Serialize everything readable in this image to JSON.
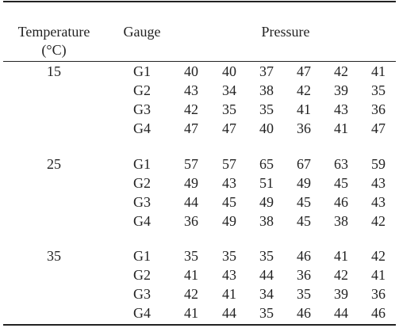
{
  "table": {
    "header": {
      "temperature": "Temperature",
      "unit": "(°C)",
      "gauge": "Gauge",
      "pressure": "Pressure"
    },
    "groups": [
      {
        "temperature": "15",
        "rows": [
          {
            "gauge": "G1",
            "pressure": [
              40,
              40,
              37,
              47,
              42,
              41
            ]
          },
          {
            "gauge": "G2",
            "pressure": [
              43,
              34,
              38,
              42,
              39,
              35
            ]
          },
          {
            "gauge": "G3",
            "pressure": [
              42,
              35,
              35,
              41,
              43,
              36
            ]
          },
          {
            "gauge": "G4",
            "pressure": [
              47,
              47,
              40,
              36,
              41,
              47
            ]
          }
        ]
      },
      {
        "temperature": "25",
        "rows": [
          {
            "gauge": "G1",
            "pressure": [
              57,
              57,
              65,
              67,
              63,
              59
            ]
          },
          {
            "gauge": "G2",
            "pressure": [
              49,
              43,
              51,
              49,
              45,
              43
            ]
          },
          {
            "gauge": "G3",
            "pressure": [
              44,
              45,
              49,
              45,
              46,
              43
            ]
          },
          {
            "gauge": "G4",
            "pressure": [
              36,
              49,
              38,
              45,
              38,
              42
            ]
          }
        ]
      },
      {
        "temperature": "35",
        "rows": [
          {
            "gauge": "G1",
            "pressure": [
              35,
              35,
              35,
              46,
              41,
              42
            ]
          },
          {
            "gauge": "G2",
            "pressure": [
              41,
              43,
              44,
              36,
              42,
              41
            ]
          },
          {
            "gauge": "G3",
            "pressure": [
              42,
              41,
              34,
              35,
              39,
              36
            ]
          },
          {
            "gauge": "G4",
            "pressure": [
              41,
              44,
              35,
              46,
              44,
              46
            ]
          }
        ]
      }
    ]
  }
}
